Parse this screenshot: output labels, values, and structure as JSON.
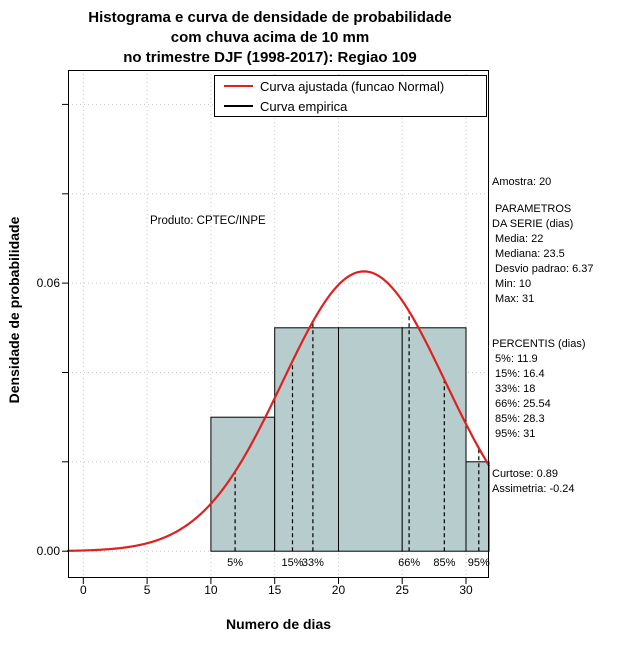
{
  "figure": {
    "title_lines": [
      "Histograma e curva de densidade de probabilidade",
      "com chuva acima de 10 mm",
      "no trimestre DJF (1998-2017): Regiao 109"
    ],
    "x_axis_label": "Numero de dias",
    "y_axis_label": "Densidade de probabilidade",
    "annotation": "Produto: CPTEC/INPE"
  },
  "legend": {
    "items": [
      {
        "label": "Curva ajustada (funcao Normal)",
        "color": "#e02020"
      },
      {
        "label": "Curva empirica",
        "color": "#000000"
      }
    ]
  },
  "stats": {
    "amostra": "Amostra: 20",
    "parametros": [
      " PARAMETROS",
      "DA SERIE (dias)",
      " Media: 22",
      " Mediana: 23.5",
      " Desvio padrao: 6.37",
      " Min: 10",
      " Max: 31"
    ],
    "percentis": [
      "PERCENTIS (dias)",
      " 5%: 11.9",
      " 15%: 16.4",
      " 33%: 18",
      " 66%: 25.54",
      " 85%: 28.3",
      " 95%: 31"
    ],
    "momentos": [
      "Curtose: 0.89",
      "Assimetria: -0.24"
    ]
  },
  "chart_data": {
    "type": "bar",
    "subtype": "histogram_with_fitted_density",
    "title": "Histograma e curva de densidade de probabilidade com chuva acima de 10 mm no trimestre DJF (1998-2017): Regiao 109",
    "xlabel": "Numero de dias",
    "ylabel": "Densidade de probabilidade",
    "xlim": [
      -1.2,
      31.8
    ],
    "ylim": [
      -0.006,
      0.1077
    ],
    "x_ticks": [
      0,
      5,
      10,
      15,
      20,
      25,
      30
    ],
    "y_ticks": [
      {
        "value": 0,
        "label": "0.00"
      },
      {
        "value": 0.06,
        "label": "0.06"
      }
    ],
    "y_minor_ticks": [
      0,
      0.02,
      0.04,
      0.06,
      0.08,
      0.1
    ],
    "grid": true,
    "legend_position": "top",
    "histogram": {
      "bin_edges": [
        10,
        15,
        20,
        25,
        30,
        35
      ],
      "densities": [
        0.03,
        0.05,
        0.05,
        0.05,
        0.02
      ],
      "fill_color": "#b7cdcd",
      "stroke_color": "#000000"
    },
    "normal_fit": {
      "mean": 22,
      "sd": 6.37,
      "color": "#e02020"
    },
    "percentile_lines": [
      {
        "label": "5%",
        "x": 11.9
      },
      {
        "label": "15%",
        "x": 16.4
      },
      {
        "label": "33%",
        "x": 18
      },
      {
        "label": "66%",
        "x": 25.54
      },
      {
        "label": "85%",
        "x": 28.3
      },
      {
        "label": "95%",
        "x": 31
      }
    ],
    "sample_size": 20
  }
}
